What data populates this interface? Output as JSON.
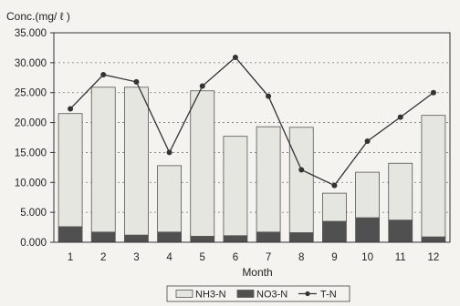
{
  "chart_data": {
    "type": "bar",
    "stacked": true,
    "categories": [
      "1",
      "2",
      "3",
      "4",
      "5",
      "6",
      "7",
      "8",
      "9",
      "10",
      "11",
      "12"
    ],
    "series": [
      {
        "name": "NO3-N",
        "type": "bar",
        "color": "#505050",
        "values": [
          2.6,
          1.7,
          1.2,
          1.7,
          1.0,
          1.1,
          1.7,
          1.6,
          3.5,
          4.1,
          3.7,
          0.9
        ]
      },
      {
        "name": "NH3-N",
        "type": "bar",
        "color": "#e6e6e1",
        "values": [
          18.9,
          24.2,
          24.7,
          11.1,
          24.3,
          16.6,
          17.6,
          17.6,
          4.7,
          7.6,
          9.5,
          20.3
        ]
      },
      {
        "name": "T-N",
        "type": "line",
        "color": "#333333",
        "values": [
          22.3,
          28.0,
          26.8,
          15.0,
          26.1,
          30.9,
          24.4,
          12.1,
          9.5,
          16.9,
          20.9,
          25.0
        ]
      }
    ],
    "ylabel": "Conc.(mg/ ℓ )",
    "xlabel": "Month",
    "ylim": [
      0,
      35
    ],
    "yticks": [
      0,
      5,
      10,
      15,
      20,
      25,
      30,
      35
    ],
    "ytick_labels": [
      "0.000",
      "5.000",
      "10.000",
      "15.000",
      "20.000",
      "25.000",
      "30.000",
      "35.000"
    ],
    "grid": {
      "y": true,
      "style": "dotted"
    },
    "legend": {
      "position": "bottom-center",
      "order": [
        "NH3-N",
        "NO3-N",
        "T-N"
      ]
    }
  }
}
